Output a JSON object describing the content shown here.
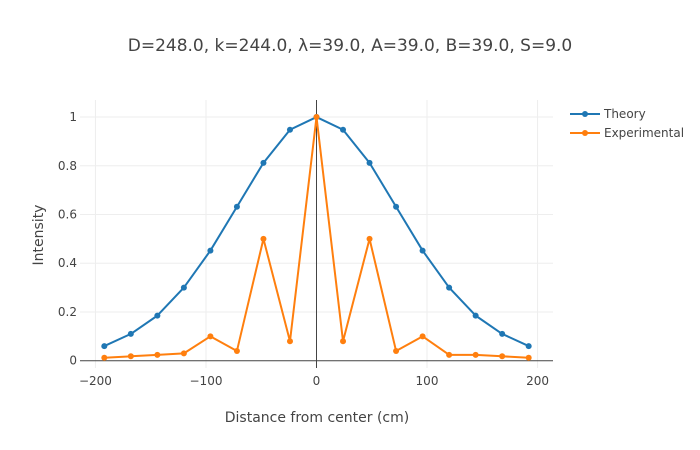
{
  "chart_data": {
    "type": "line",
    "title": "D=248.0, k=244.0, λ=39.0, A=39.0, B=39.0, S=9.0",
    "xlabel": "Distance from center (cm)",
    "ylabel": "Intensity",
    "xlim": [
      -214,
      214
    ],
    "ylim": [
      -0.03,
      1.07
    ],
    "xticks": [
      -200,
      -100,
      0,
      100,
      200
    ],
    "xtick_labels": [
      "−200",
      "−100",
      "0",
      "100",
      "200"
    ],
    "yticks": [
      0,
      0.2,
      0.4,
      0.6,
      0.8,
      1
    ],
    "ytick_labels": [
      "0",
      "0.2",
      "0.4",
      "0.6",
      "0.8",
      "1"
    ],
    "grid": true,
    "zero_line_x": true,
    "zero_line_y": true,
    "legend_position": "top-right",
    "x": [
      -192,
      -168,
      -144,
      -120,
      -96,
      -72,
      -48,
      -24,
      0,
      24,
      48,
      72,
      96,
      120,
      144,
      168,
      192
    ],
    "series": [
      {
        "name": "Theory",
        "color": "#1f77b4",
        "values": [
          0.06,
          0.11,
          0.185,
          0.3,
          0.452,
          0.632,
          0.812,
          0.948,
          1.0,
          0.948,
          0.812,
          0.632,
          0.452,
          0.3,
          0.185,
          0.11,
          0.06
        ]
      },
      {
        "name": "Experimental",
        "color": "#ff7f0e",
        "values": [
          0.012,
          0.018,
          0.024,
          0.03,
          0.1,
          0.04,
          0.5,
          0.08,
          1.0,
          0.08,
          0.5,
          0.04,
          0.1,
          0.024,
          0.024,
          0.018,
          0.012
        ]
      }
    ]
  }
}
